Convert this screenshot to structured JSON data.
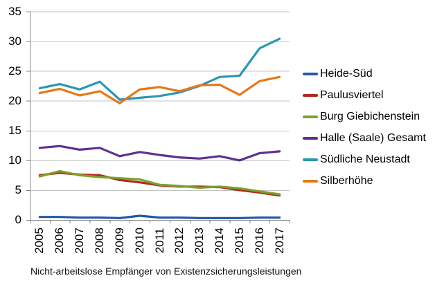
{
  "chart_data": {
    "type": "line",
    "title": "",
    "caption": "Nicht-arbeitslose Empfänger von Existenzsicherungsleistungen",
    "x": [
      "2005",
      "2006",
      "2007",
      "2008",
      "2009",
      "2010",
      "2011",
      "2012",
      "2013",
      "2014",
      "2015",
      "2016",
      "2017"
    ],
    "ylim": [
      0,
      35
    ],
    "yticks": [
      0,
      5,
      10,
      15,
      20,
      25,
      30,
      35
    ],
    "grid": "horizontal",
    "legend_position": "right",
    "grid_color": "#C3C3C3",
    "axis_color": "#848484",
    "series": [
      {
        "name": "Heide-Süd",
        "color": "#2458A5",
        "values": [
          0.5,
          0.5,
          0.4,
          0.4,
          0.3,
          0.7,
          0.4,
          0.4,
          0.3,
          0.3,
          0.3,
          0.4,
          0.4
        ]
      },
      {
        "name": "Paulusviertel",
        "color": "#B2281E",
        "values": [
          7.5,
          7.9,
          7.6,
          7.5,
          6.7,
          6.3,
          5.8,
          5.6,
          5.6,
          5.5,
          5.0,
          4.6,
          4.1
        ]
      },
      {
        "name": "Burg Giebichenstein",
        "color": "#79A22E",
        "values": [
          7.3,
          8.2,
          7.5,
          7.2,
          7.0,
          6.8,
          5.9,
          5.7,
          5.4,
          5.6,
          5.3,
          4.8,
          4.3
        ]
      },
      {
        "name": "Halle (Saale) Gesamt",
        "color": "#5D3092",
        "values": [
          12.1,
          12.4,
          11.8,
          12.1,
          10.7,
          11.4,
          10.9,
          10.5,
          10.3,
          10.7,
          10.0,
          11.2,
          11.5
        ]
      },
      {
        "name": "Südliche Neustadt",
        "color": "#2A96B4",
        "values": [
          22.1,
          22.8,
          21.9,
          23.2,
          20.2,
          20.5,
          20.8,
          21.4,
          22.5,
          24.0,
          24.2,
          28.8,
          30.4
        ]
      },
      {
        "name": "Silberhöhe",
        "color": "#E67817",
        "values": [
          21.3,
          22.0,
          20.9,
          21.6,
          19.6,
          21.9,
          22.3,
          21.6,
          22.6,
          22.7,
          21.0,
          23.3,
          24.0
        ]
      }
    ]
  }
}
